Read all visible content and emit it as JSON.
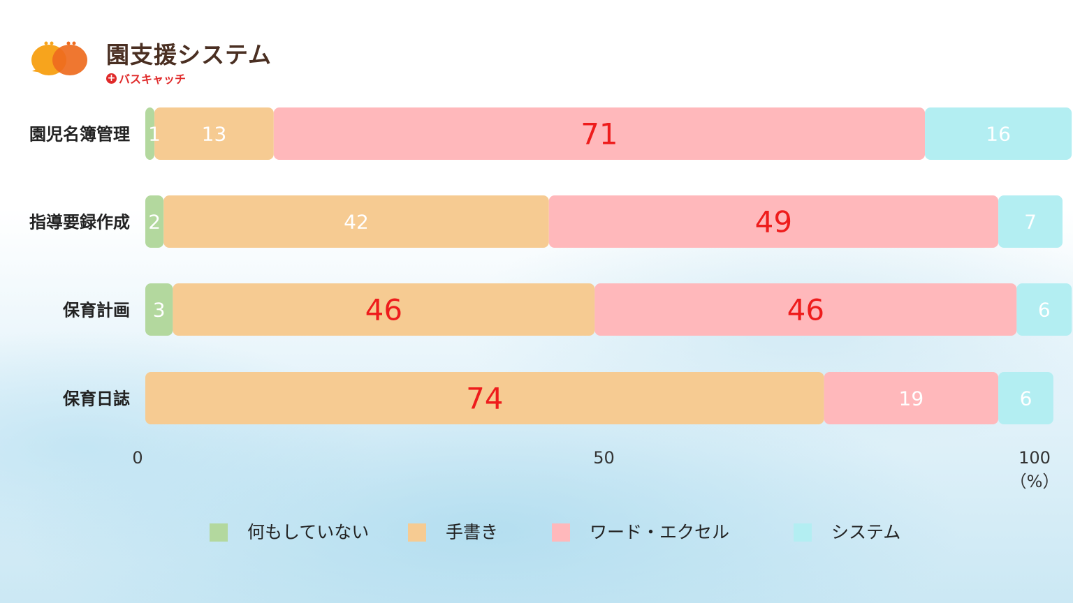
{
  "header": {
    "title": "園支援システム",
    "subtitle": "バスキャッチ"
  },
  "colors": {
    "none": "#b3d89e",
    "handwritten": "#f6cb92",
    "word_excel": "#ffb8bb",
    "system": "#b3eef2",
    "highlight_text": "#ee1c1c",
    "light_text": "#ffffff"
  },
  "chart_data": {
    "type": "bar",
    "orientation": "horizontal",
    "stacked": true,
    "categories": [
      "園児名簿管理",
      "指導要録作成",
      "保育計画",
      "保育日誌"
    ],
    "series": [
      {
        "name": "何もしていない",
        "values": [
          1,
          2,
          3,
          0
        ]
      },
      {
        "name": "手書き",
        "values": [
          13,
          42,
          46,
          74
        ]
      },
      {
        "name": "ワード・エクセル",
        "values": [
          71,
          49,
          46,
          19
        ]
      },
      {
        "name": "システム",
        "values": [
          16,
          7,
          6,
          6
        ]
      }
    ],
    "x_ticks": [
      "0",
      "50",
      "100"
    ],
    "x_unit": "（%）",
    "xlim": [
      0,
      100
    ],
    "legend_position": "bottom",
    "highlighted_values": [
      [
        false,
        false,
        true,
        false
      ],
      [
        false,
        false,
        true,
        false
      ],
      [
        false,
        true,
        true,
        false
      ],
      [
        false,
        true,
        false,
        false
      ]
    ]
  }
}
